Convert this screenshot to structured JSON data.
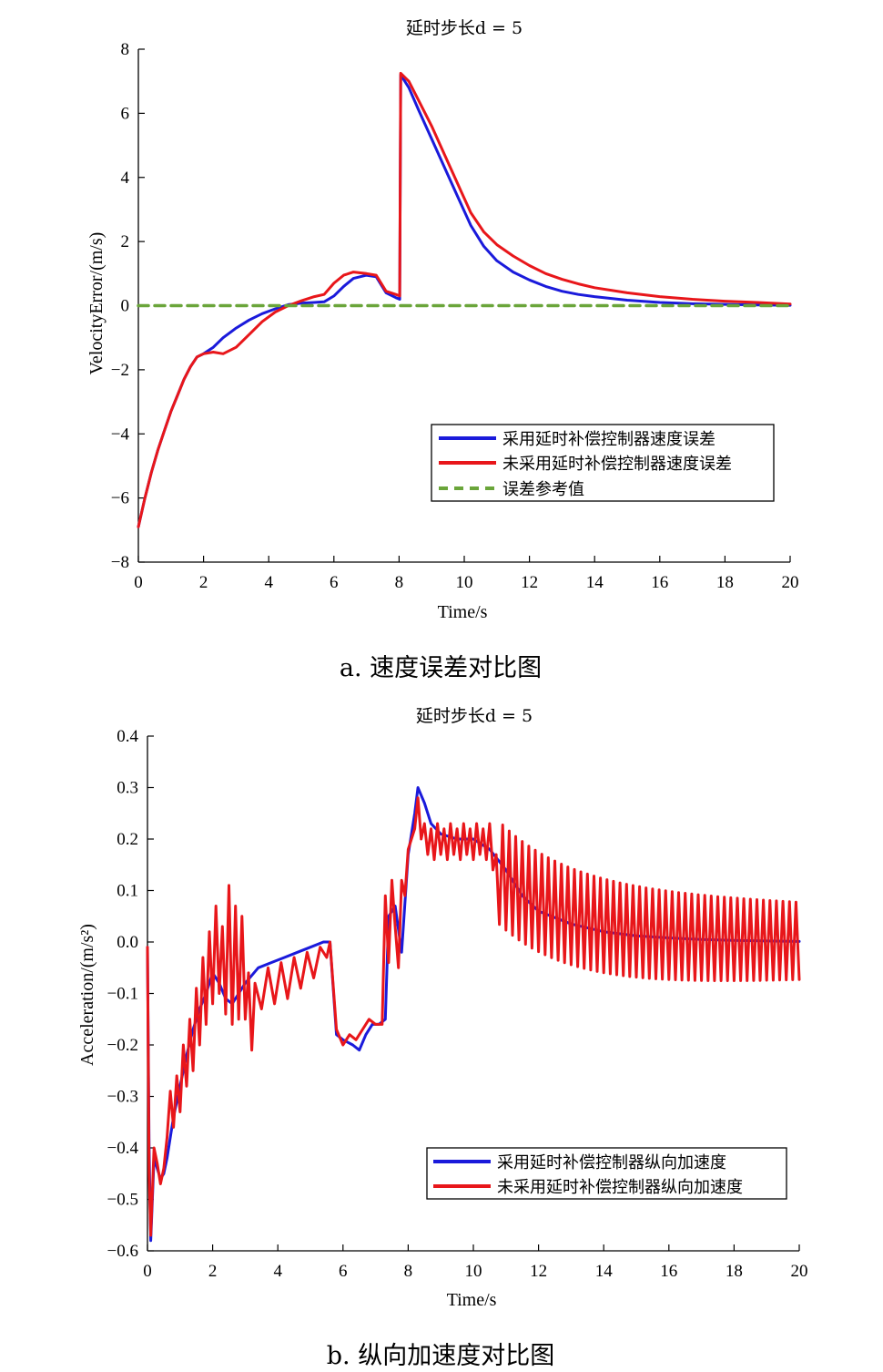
{
  "chart_data": [
    {
      "type": "line",
      "title": "延时步长d = 5",
      "xlabel": "Time/s",
      "ylabel": "VelocityError/(m/s)",
      "caption": "a. 速度误差对比图",
      "xlim": [
        0,
        20
      ],
      "ylim": [
        -8,
        8
      ],
      "xticks": [
        "0",
        "2",
        "4",
        "6",
        "8",
        "10",
        "12",
        "14",
        "16",
        "18",
        "20"
      ],
      "yticks": [
        "−8",
        "−6",
        "−4",
        "−2",
        "0",
        "2",
        "4",
        "6",
        "8"
      ],
      "grid": false,
      "legend": "bottom-right",
      "series": [
        {
          "name": "采用延时补偿控制器速度误差",
          "color": "#1a1adb",
          "style": "solid",
          "x": [
            0,
            0.2,
            0.4,
            0.6,
            0.8,
            1.0,
            1.2,
            1.4,
            1.6,
            1.8,
            2.0,
            2.3,
            2.6,
            3.0,
            3.4,
            3.8,
            4.2,
            4.6,
            5.0,
            5.4,
            5.7,
            6.0,
            6.3,
            6.6,
            7.0,
            7.3,
            7.6,
            7.9,
            8.02,
            8.05,
            8.3,
            8.6,
            9.0,
            9.4,
            9.8,
            10.2,
            10.6,
            11.0,
            11.5,
            12.0,
            12.5,
            13.0,
            13.5,
            14.0,
            15.0,
            16.0,
            17.0,
            18.0,
            19.0,
            20.0
          ],
          "values": [
            -6.9,
            -6.0,
            -5.2,
            -4.5,
            -3.9,
            -3.3,
            -2.8,
            -2.3,
            -1.9,
            -1.6,
            -1.5,
            -1.3,
            -1.0,
            -0.7,
            -0.45,
            -0.25,
            -0.1,
            0.03,
            0.08,
            0.1,
            0.12,
            0.3,
            0.6,
            0.85,
            0.95,
            0.9,
            0.4,
            0.25,
            0.2,
            7.2,
            6.8,
            6.1,
            5.2,
            4.3,
            3.4,
            2.5,
            1.85,
            1.4,
            1.05,
            0.8,
            0.6,
            0.45,
            0.35,
            0.28,
            0.17,
            0.1,
            0.06,
            0.04,
            0.02,
            0.01
          ]
        },
        {
          "name": "未采用延时补偿控制器速度误差",
          "color": "#e8161a",
          "style": "solid",
          "x": [
            0,
            0.2,
            0.4,
            0.6,
            0.8,
            1.0,
            1.2,
            1.4,
            1.6,
            1.8,
            2.0,
            2.3,
            2.6,
            3.0,
            3.4,
            3.8,
            4.2,
            4.6,
            5.0,
            5.4,
            5.7,
            6.0,
            6.3,
            6.6,
            7.0,
            7.3,
            7.6,
            7.9,
            8.02,
            8.05,
            8.3,
            8.6,
            9.0,
            9.4,
            9.8,
            10.2,
            10.6,
            11.0,
            11.5,
            12.0,
            12.5,
            13.0,
            13.5,
            14.0,
            15.0,
            16.0,
            17.0,
            18.0,
            19.0,
            20.0
          ],
          "values": [
            -6.9,
            -6.0,
            -5.2,
            -4.5,
            -3.9,
            -3.3,
            -2.8,
            -2.3,
            -1.9,
            -1.6,
            -1.5,
            -1.45,
            -1.5,
            -1.3,
            -0.9,
            -0.5,
            -0.2,
            0.0,
            0.15,
            0.28,
            0.35,
            0.7,
            0.95,
            1.05,
            1.0,
            0.95,
            0.45,
            0.35,
            0.3,
            7.25,
            7.0,
            6.4,
            5.6,
            4.7,
            3.8,
            2.9,
            2.3,
            1.9,
            1.55,
            1.25,
            1.0,
            0.82,
            0.68,
            0.56,
            0.4,
            0.28,
            0.2,
            0.14,
            0.1,
            0.05
          ]
        },
        {
          "name": "误差参考值",
          "color": "#6aa53a",
          "style": "dashed",
          "x": [
            0,
            20
          ],
          "values": [
            0,
            0
          ]
        }
      ]
    },
    {
      "type": "line",
      "title": "延时步长d = 5",
      "xlabel": "Time/s",
      "ylabel": "Acceleration/(m/s²)",
      "caption": "b. 纵向加速度对比图",
      "xlim": [
        0,
        20
      ],
      "ylim": [
        -0.6,
        0.4
      ],
      "xticks": [
        "0",
        "2",
        "4",
        "6",
        "8",
        "10",
        "12",
        "14",
        "16",
        "18",
        "20"
      ],
      "yticks": [
        "−0.6",
        "−0.5",
        "−0.4",
        "−0.3",
        "−0.2",
        "−0.1",
        "0.0",
        "0.1",
        "0.2",
        "0.3",
        "0.4"
      ],
      "grid": false,
      "legend": "bottom-right",
      "series": [
        {
          "name": "采用延时补偿控制器纵向加速度",
          "color": "#1a1adb",
          "style": "solid",
          "x": [
            0,
            0.05,
            0.1,
            0.2,
            0.3,
            0.4,
            0.5,
            0.6,
            0.8,
            1.0,
            1.2,
            1.4,
            1.6,
            1.8,
            2.0,
            2.2,
            2.4,
            2.6,
            2.8,
            3.0,
            3.4,
            3.8,
            4.2,
            4.6,
            5.0,
            5.4,
            5.6,
            5.8,
            6.0,
            6.3,
            6.5,
            6.7,
            6.9,
            7.1,
            7.3,
            7.4,
            7.6,
            7.8,
            8.0,
            8.2,
            8.3,
            8.5,
            8.7,
            9.0,
            9.5,
            10.0,
            10.5,
            11.0,
            11.5,
            12.0,
            13.0,
            14.0,
            15.0,
            16.0,
            17.0,
            18.0,
            19.0,
            20.0
          ],
          "values": [
            -0.01,
            -0.4,
            -0.58,
            -0.42,
            -0.44,
            -0.46,
            -0.45,
            -0.42,
            -0.34,
            -0.28,
            -0.22,
            -0.17,
            -0.13,
            -0.1,
            -0.06,
            -0.08,
            -0.11,
            -0.12,
            -0.1,
            -0.08,
            -0.05,
            -0.04,
            -0.03,
            -0.02,
            -0.01,
            0.0,
            0.0,
            -0.18,
            -0.19,
            -0.2,
            -0.21,
            -0.18,
            -0.16,
            -0.16,
            -0.15,
            0.05,
            0.07,
            -0.02,
            0.17,
            0.25,
            0.3,
            0.27,
            0.23,
            0.21,
            0.2,
            0.2,
            0.18,
            0.14,
            0.09,
            0.06,
            0.035,
            0.02,
            0.012,
            0.008,
            0.005,
            0.003,
            0.002,
            0.001
          ]
        },
        {
          "name": "未采用延时补偿控制器纵向加速度",
          "color": "#e8161a",
          "style": "solid",
          "x": [
            0,
            0.05,
            0.1,
            0.2,
            0.3,
            0.4,
            0.5,
            0.6,
            0.7,
            0.8,
            0.9,
            1.0,
            1.1,
            1.2,
            1.3,
            1.4,
            1.5,
            1.6,
            1.7,
            1.8,
            1.9,
            2.0,
            2.1,
            2.2,
            2.3,
            2.4,
            2.5,
            2.6,
            2.7,
            2.8,
            2.9,
            3.0,
            3.1,
            3.2,
            3.3,
            3.5,
            3.7,
            3.9,
            4.1,
            4.3,
            4.5,
            4.7,
            4.9,
            5.1,
            5.3,
            5.5,
            5.6,
            5.8,
            6.0,
            6.2,
            6.4,
            6.6,
            6.8,
            7.0,
            7.2,
            7.3,
            7.4,
            7.5,
            7.6,
            7.7,
            7.8,
            7.9,
            8.0,
            8.2,
            8.3,
            8.4,
            8.5,
            8.6,
            8.7,
            8.8,
            8.9,
            9.0,
            9.1,
            9.2,
            9.3,
            9.4,
            9.5,
            9.6,
            9.7,
            9.8,
            9.9,
            10.0,
            10.1,
            10.2,
            10.3,
            10.4,
            10.5,
            10.6,
            10.7
          ],
          "values": [
            -0.01,
            -0.45,
            -0.57,
            -0.4,
            -0.43,
            -0.47,
            -0.44,
            -0.38,
            -0.29,
            -0.36,
            -0.26,
            -0.33,
            -0.2,
            -0.28,
            -0.15,
            -0.25,
            -0.09,
            -0.2,
            -0.03,
            -0.16,
            0.02,
            -0.12,
            0.07,
            -0.1,
            0.03,
            -0.14,
            0.11,
            -0.16,
            0.07,
            -0.15,
            0.05,
            -0.15,
            -0.06,
            -0.21,
            -0.08,
            -0.13,
            -0.05,
            -0.12,
            -0.04,
            -0.11,
            -0.03,
            -0.09,
            -0.02,
            -0.07,
            -0.01,
            -0.03,
            0.0,
            -0.17,
            -0.2,
            -0.18,
            -0.19,
            -0.17,
            -0.15,
            -0.16,
            -0.16,
            0.09,
            -0.04,
            0.12,
            0.03,
            -0.05,
            0.12,
            0.09,
            0.18,
            0.22,
            0.28,
            0.2,
            0.23,
            0.17,
            0.22,
            0.16,
            0.23,
            0.17,
            0.22,
            0.16,
            0.23,
            0.17,
            0.22,
            0.16,
            0.23,
            0.17,
            0.22,
            0.16,
            0.23,
            0.17,
            0.22,
            0.16,
            0.23,
            0.14,
            0.17
          ]
        }
      ],
      "oscillation": {
        "series": "未采用延时补偿控制器纵向加速度",
        "from_x": 10.7,
        "to_x": 20,
        "period_s": 0.2,
        "amplitude_start": 0.1,
        "amplitude_end": 0.075,
        "center_start": 0.14,
        "center_end": 0.0
      }
    }
  ]
}
